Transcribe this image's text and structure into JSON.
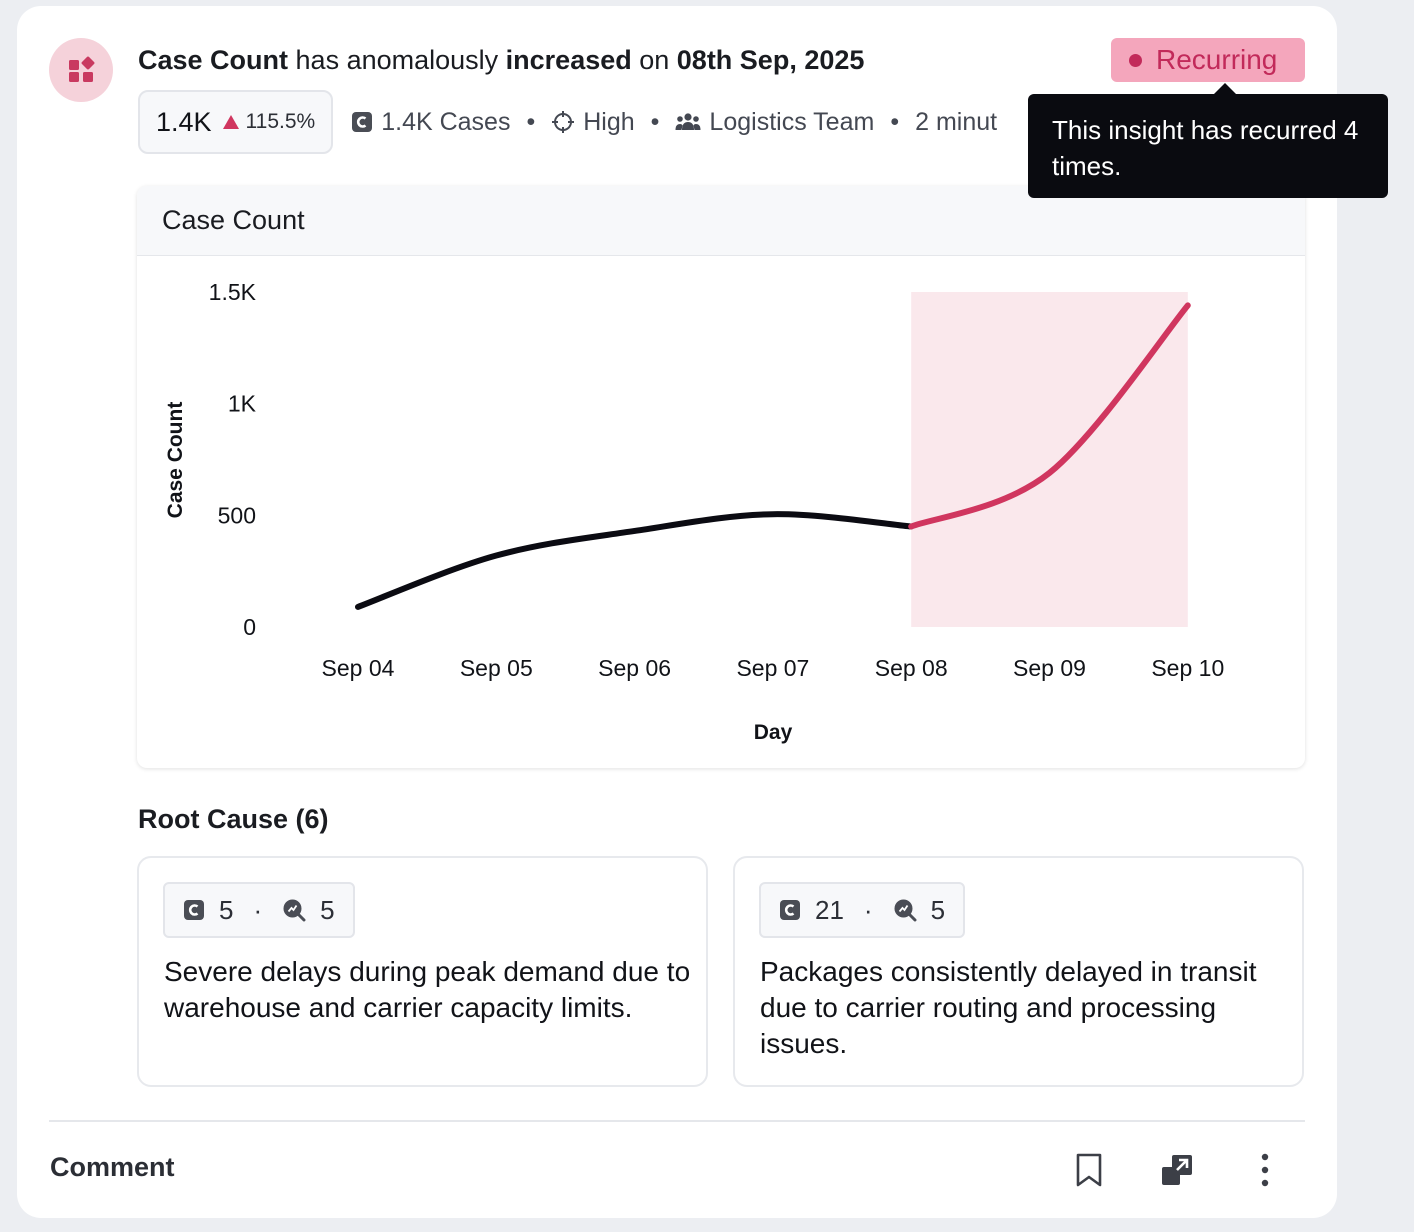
{
  "insight": {
    "headline": {
      "metric": "Case Count",
      "text1": " has anomalously ",
      "direction": "increased",
      "text2": " on ",
      "date": "08th Sep, 2025"
    },
    "badge": {
      "label": "Recurring"
    },
    "tooltip": {
      "text": "This insight has recurred 4 times."
    },
    "metrics": {
      "value": "1.4K",
      "change": "115.5%",
      "cases": "1.4K Cases",
      "priority": "High",
      "team": "Logistics Team",
      "time": "2 minut"
    }
  },
  "chart_card": {
    "title": "Case Count"
  },
  "chart_data": {
    "type": "line",
    "categories": [
      "Sep 04",
      "Sep 05",
      "Sep 06",
      "Sep 07",
      "Sep 08",
      "Sep 09",
      "Sep 10"
    ],
    "series": [
      {
        "values": [
          90,
          320,
          430,
          505,
          450,
          null,
          null
        ],
        "color": "#0b0b12"
      },
      {
        "values": [
          null,
          null,
          null,
          null,
          450,
          690,
          1440
        ],
        "color": "#d0365f"
      }
    ],
    "highlight_range": [
      "Sep 08",
      "Sep 10"
    ],
    "highlight_color": "#fae8ec",
    "xlabel": "Day",
    "ylabel": "Case Count",
    "ylim": [
      0,
      1500
    ],
    "yticks": [
      0,
      500,
      1000,
      1500
    ],
    "ytick_labels": [
      "0",
      "500",
      "1K",
      "1.5K"
    ],
    "grid": false,
    "legend": "none"
  },
  "root_cause": {
    "title": "Root Cause (6)",
    "items": [
      {
        "cases": "5",
        "insights": "5",
        "text": "Severe delays during peak demand due to warehouse and carrier capacity limits."
      },
      {
        "cases": "21",
        "insights": "5",
        "text": "Packages consistently delayed in transit due to carrier routing and processing issues."
      }
    ]
  },
  "footer": {
    "comment_label": "Comment"
  },
  "icons": {
    "insight": "widgets-icon",
    "cases": "case-c-icon",
    "priority": "crosshair-icon",
    "team": "team-icon",
    "root_insights": "search-insight-icon",
    "bookmark": "bookmark-icon",
    "open": "open-external-icon",
    "more": "more-vertical-icon"
  },
  "colors": {
    "accent": "#d0365f",
    "badge_bg": "#f4a6bc",
    "badge_text": "#c22a5a"
  }
}
